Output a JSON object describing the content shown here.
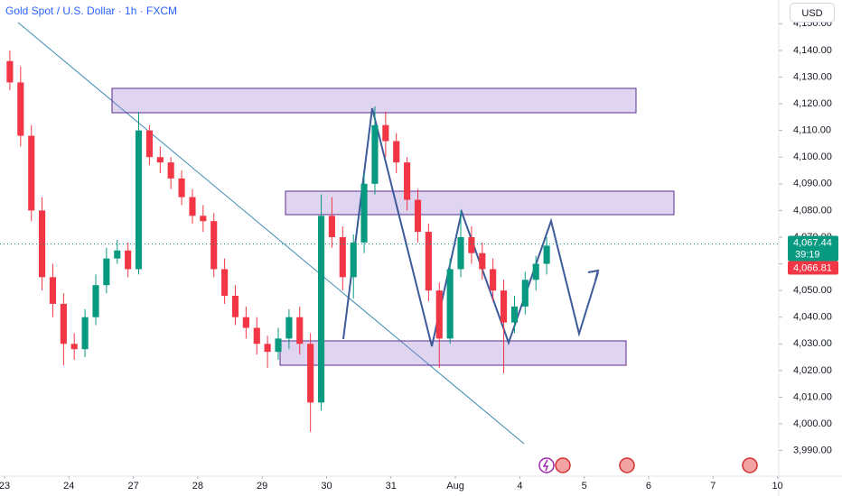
{
  "chart_data": {
    "type": "candlestick",
    "title": "Gold Spot / U.S. Dollar · 1h · FXCM",
    "currency": "USD",
    "up_color": "#089981",
    "down_color": "#f23645",
    "grid": false,
    "xlim": [
      -0.07,
      12.02
    ],
    "ylim": [
      3980.4,
      4158.9
    ],
    "xticks": [
      {
        "value": 0,
        "label": "23"
      },
      {
        "value": 1,
        "label": "24"
      },
      {
        "value": 2,
        "label": "27"
      },
      {
        "value": 3,
        "label": "28"
      },
      {
        "value": 4,
        "label": "29"
      },
      {
        "value": 5,
        "label": "30"
      },
      {
        "value": 6,
        "label": "31"
      },
      {
        "value": 7,
        "label": "Aug"
      },
      {
        "value": 8,
        "label": "4"
      },
      {
        "value": 9,
        "label": "5"
      },
      {
        "value": 10,
        "label": "6"
      },
      {
        "value": 11,
        "label": "7"
      },
      {
        "value": 12,
        "label": "10"
      }
    ],
    "yticks": [
      {
        "value": 3990,
        "label": "3,990.00"
      },
      {
        "value": 4000,
        "label": "4,000.00"
      },
      {
        "value": 4010,
        "label": "4,010.00"
      },
      {
        "value": 4020,
        "label": "4,020.00"
      },
      {
        "value": 4030,
        "label": "4,030.00"
      },
      {
        "value": 4040,
        "label": "4,040.00"
      },
      {
        "value": 4050,
        "label": "4,050.00"
      },
      {
        "value": 4060,
        "label": "4,060.00"
      },
      {
        "value": 4070,
        "label": "4,070.00"
      },
      {
        "value": 4080,
        "label": "4,080.00"
      },
      {
        "value": 4090,
        "label": "4,090.00"
      },
      {
        "value": 4100,
        "label": "4,100.00"
      },
      {
        "value": 4110,
        "label": "4,110.00"
      },
      {
        "value": 4120,
        "label": "4,120.00"
      },
      {
        "value": 4130,
        "label": "4,130.00"
      },
      {
        "value": 4140,
        "label": "4,140.00"
      },
      {
        "value": 4150,
        "label": "4,150.00"
      }
    ],
    "x": [
      0.083,
      0.25,
      0.417,
      0.583,
      0.75,
      0.917,
      1.083,
      1.25,
      1.417,
      1.583,
      1.75,
      1.917,
      2.083,
      2.25,
      2.417,
      2.583,
      2.75,
      2.917,
      3.083,
      3.25,
      3.417,
      3.583,
      3.75,
      3.917,
      4.083,
      4.25,
      4.417,
      4.583,
      4.75,
      4.917,
      5.083,
      5.25,
      5.417,
      5.583,
      5.75,
      5.917,
      6.083,
      6.25,
      6.417,
      6.583,
      6.75,
      6.917,
      7.083,
      7.25,
      7.417,
      7.583,
      7.75,
      7.917,
      8.083,
      8.25,
      8.417
    ],
    "open": [
      4136,
      4128,
      4108,
      4080,
      4055,
      4045,
      4030,
      4028,
      4040,
      4052,
      4062,
      4065,
      4058,
      4110,
      4100,
      4098,
      4092,
      4085,
      4078,
      4076,
      4058,
      4048,
      4040,
      4036,
      4030,
      4027,
      4032,
      4040,
      4030,
      4008,
      4078,
      4070,
      4055,
      4068,
      4090,
      4112,
      4106,
      4098,
      4084,
      4072,
      4050,
      4032,
      4058,
      4070,
      4064,
      4058,
      4050,
      4038,
      4044,
      4054,
      4060
    ],
    "high": [
      4140,
      4134,
      4112,
      4085,
      4060,
      4049,
      4034,
      4043,
      4056,
      4066,
      4069,
      4068,
      4117,
      4112,
      4104,
      4100,
      4095,
      4088,
      4082,
      4079,
      4062,
      4052,
      4044,
      4040,
      4033,
      4036,
      4043,
      4044,
      4034,
      4086,
      4085,
      4074,
      4071,
      4094,
      4119,
      4117,
      4109,
      4100,
      4088,
      4075,
      4053,
      4062,
      4080,
      4074,
      4068,
      4062,
      4054,
      4048,
      4057,
      4063,
      4070
    ],
    "low": [
      4125,
      4104,
      4076,
      4050,
      4040,
      4022,
      4024,
      4025,
      4037,
      4049,
      4060,
      4055,
      4056,
      4097,
      4094,
      4088,
      4082,
      4075,
      4072,
      4055,
      4045,
      4037,
      4032,
      4026,
      4021,
      4024,
      4028,
      4026,
      3997,
      4005,
      4066,
      4050,
      4047,
      4064,
      4086,
      4100,
      4094,
      4080,
      4068,
      4046,
      4021,
      4030,
      4055,
      4060,
      4054,
      4046,
      4019,
      4034,
      4041,
      4050,
      4056
    ],
    "close": [
      4128,
      4108,
      4080,
      4055,
      4045,
      4030,
      4028,
      4040,
      4052,
      4062,
      4065,
      4058,
      4110,
      4100,
      4098,
      4092,
      4085,
      4078,
      4076,
      4058,
      4048,
      4040,
      4036,
      4030,
      4027,
      4032,
      4040,
      4030,
      4008,
      4078,
      4070,
      4055,
      4068,
      4090,
      4112,
      4106,
      4098,
      4084,
      4072,
      4050,
      4032,
      4058,
      4070,
      4064,
      4058,
      4050,
      4038,
      4044,
      4054,
      4060,
      4066.81
    ],
    "ask_price": {
      "value": 4067.44,
      "label": "4,067.44"
    },
    "countdown": "39:19",
    "last_price": {
      "value": 4066.81,
      "label": "4,066.81"
    }
  }
}
